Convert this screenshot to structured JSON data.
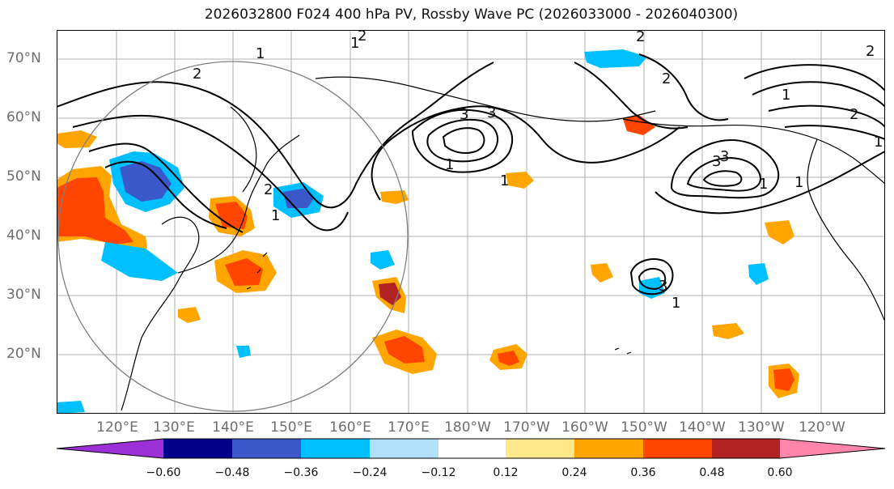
{
  "title": "2026032800 F024 400 hPa PV, Rossby Wave PC (2026033000 - 2026040300)",
  "lat_labels": [
    "70°N",
    "60°N",
    "50°N",
    "40°N",
    "30°N",
    "20°N"
  ],
  "lon_labels": [
    "120°E",
    "130°E",
    "140°E",
    "150°E",
    "160°E",
    "170°E",
    "180°W",
    "170°W",
    "160°W",
    "150°W",
    "140°W",
    "130°W",
    "120°W"
  ],
  "contour_labels": [
    "2",
    "2",
    "1",
    "2",
    "1",
    "3",
    "2",
    "2",
    "1",
    "1",
    "2",
    "1",
    "3",
    "1",
    "2",
    "3",
    "1",
    "1",
    "1",
    "1",
    "3",
    "3"
  ],
  "colorbar": {
    "ticks": [
      "−0.60",
      "−0.48",
      "−0.36",
      "−0.24",
      "−0.12",
      "0.12",
      "0.24",
      "0.36",
      "0.48",
      "0.60"
    ],
    "colors": [
      "#9b30d6",
      "#00008b",
      "#3a58c9",
      "#00bfff",
      "#b0e0fa",
      "#ffffff",
      "#ffe88a",
      "#ffa500",
      "#ff4500",
      "#b22222",
      "#ff85ad"
    ]
  },
  "chart_data": {
    "type": "map",
    "title": "2026032800 F024 400 hPa PV, Rossby Wave PC (2026033000 - 2026040300)",
    "lon_range": [
      "110°E",
      "112°W"
    ],
    "lat_range": [
      "10°N",
      "75°N"
    ],
    "contour_variable": "400 hPa PV",
    "contour_levels": [
      1,
      2,
      3
    ],
    "shading_variable": "Rossby Wave PC",
    "shading_levels": [
      -0.6,
      -0.48,
      -0.36,
      -0.24,
      -0.12,
      0.12,
      0.24,
      0.36,
      0.48,
      0.6
    ]
  }
}
